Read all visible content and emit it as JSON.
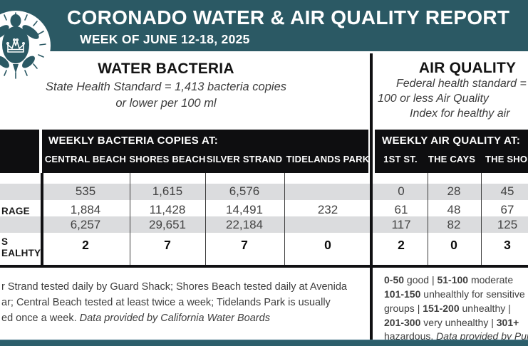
{
  "header": {
    "title": "CORONADO WATER & AIR QUALITY REPORT",
    "subtitle": "WEEK OF JUNE 12-18, 2025",
    "logo": "sea-turtle-with-crown-badge"
  },
  "colors": {
    "teal": "#2b5964",
    "band_black": "#0e0e10",
    "stripe_gray": "#dbdcde"
  },
  "water_section": {
    "title": "WATER BACTERIA",
    "standard_line1": "State Health Standard = 1,413 bacteria copies",
    "standard_line2": "or lower per 100 ml",
    "table_heading": "WEEKLY BACTERIA COPIES AT:",
    "columns": [
      "CENTRAL BEACH",
      "SHORES BEACH",
      "SILVER STRAND",
      "TIDELANDS PARK"
    ],
    "rows": [
      {
        "values": [
          "535",
          "1,615",
          "6,576",
          ""
        ]
      },
      {
        "values": [
          "1,884",
          "11,428",
          "14,491",
          "232"
        ]
      },
      {
        "values": [
          "6,257",
          "29,651",
          "22,184",
          ""
        ]
      },
      {
        "values": [
          "2",
          "7",
          "7",
          "0"
        ]
      }
    ],
    "note_lines": [
      [
        {
          "t": "r Strand tested daily by Guard Shack; Shores Beach tested daily at Avenida"
        }
      ],
      [
        {
          "t": "ar; Central Beach tested at least twice a week; Tidelands Park is usually"
        }
      ],
      [
        {
          "t": "ed once a week. "
        },
        {
          "t": "Data provided by California Water Boards",
          "i": 1
        }
      ]
    ]
  },
  "air_section": {
    "title": "AIR QUALITY",
    "standard_line1": "Federal health standard =",
    "standard_line2": "100 or less Air Quality",
    "standard_line3": "Index for healthy air",
    "table_heading": "WEEKLY AIR QUALITY AT:",
    "columns": [
      "1ST ST.",
      "THE CAYS",
      "THE SHORES"
    ],
    "rows": [
      {
        "values": [
          "0",
          "28",
          "45"
        ]
      },
      {
        "values": [
          "61",
          "48",
          "67"
        ]
      },
      {
        "values": [
          "117",
          "82",
          "125"
        ]
      },
      {
        "values": [
          "2",
          "0",
          "3"
        ]
      }
    ],
    "legend_lines": [
      [
        {
          "t": "0-50",
          "b": 1
        },
        {
          "t": " good | "
        },
        {
          "t": "51-100",
          "b": 1
        },
        {
          "t": " moderate"
        }
      ],
      [
        {
          "t": "101-150",
          "b": 1
        },
        {
          "t": " unhealthly for sensitive"
        }
      ],
      [
        {
          "t": "groups | "
        },
        {
          "t": "151-200",
          "b": 1
        },
        {
          "t": " unhealthy |"
        }
      ],
      [
        {
          "t": "201-300",
          "b": 1
        },
        {
          "t": " very unhealthy | "
        },
        {
          "t": "301+",
          "b": 1
        }
      ],
      [
        {
          "t": "hazardous. "
        },
        {
          "t": "Data provided by PurpleAir",
          "i": 1
        }
      ]
    ]
  },
  "row_labels": {
    "row2_fragment": "RAGE",
    "row4_fragment_line1": "S",
    "row4_fragment_line2": "EALHTY"
  }
}
